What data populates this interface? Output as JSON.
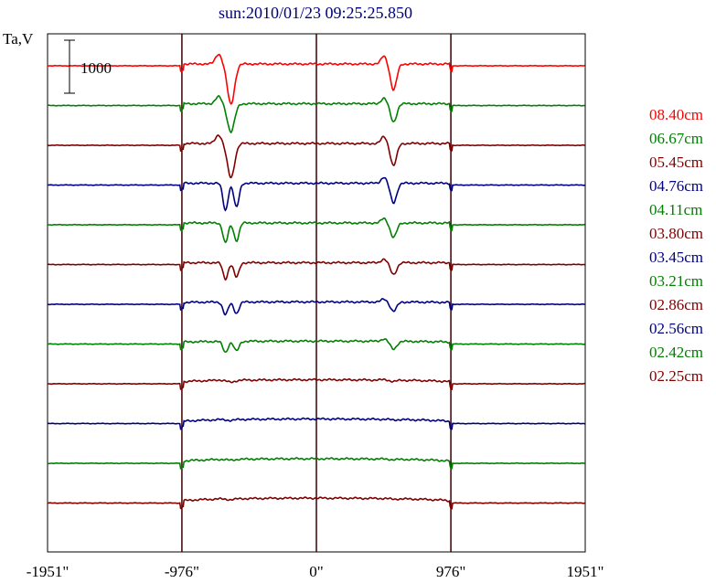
{
  "chart_data": {
    "type": "line",
    "title": "sun:2010/01/23 09:25:25.850",
    "ylabel": "Ta,V",
    "xlabel": "",
    "xlim": [
      -1951,
      1951
    ],
    "x_ticks": [
      {
        "value": -1951,
        "label": "-1951\""
      },
      {
        "value": -976,
        "label": "-976\""
      },
      {
        "value": 0,
        "label": "0\""
      },
      {
        "value": 976,
        "label": "976\""
      },
      {
        "value": 1951,
        "label": "1951\""
      }
    ],
    "vertical_lines": [
      -976,
      0,
      976
    ],
    "scale_bar": {
      "label": "1000",
      "value": 1000
    },
    "colors": {
      "red": "#ff0000",
      "green": "#008000",
      "maroon": "#800000",
      "navy": "#000080",
      "axis": "#000000",
      "divider": "#3a0000",
      "title": "#000080"
    },
    "series": [
      {
        "name": "08.40cm",
        "color": "#ff0000",
        "offset": 0,
        "dip_left": -620,
        "dip_right": 560,
        "depth": 1.0,
        "double": false,
        "limb": 0
      },
      {
        "name": "06.67cm",
        "color": "#008000",
        "offset": 1,
        "dip_left": -620,
        "dip_right": 560,
        "depth": 0.7,
        "double": false,
        "limb": 0
      },
      {
        "name": "05.45cm",
        "color": "#800000",
        "offset": 2,
        "dip_left": -620,
        "dip_right": 560,
        "depth": 0.85,
        "double": false,
        "limb": 0
      },
      {
        "name": "04.76cm",
        "color": "#000080",
        "offset": 3,
        "dip_left": -620,
        "dip_right": 560,
        "depth": 0.75,
        "double": true,
        "limb": 0
      },
      {
        "name": "04.11cm",
        "color": "#008000",
        "offset": 4,
        "dip_left": -620,
        "dip_right": 560,
        "depth": 0.55,
        "double": true,
        "limb": 0
      },
      {
        "name": "03.80cm",
        "color": "#800000",
        "offset": 5,
        "dip_left": -620,
        "dip_right": 560,
        "depth": 0.45,
        "double": true,
        "limb": 0
      },
      {
        "name": "03.45cm",
        "color": "#000080",
        "offset": 6,
        "dip_left": -620,
        "dip_right": 560,
        "depth": 0.35,
        "double": true,
        "limb": 0.05
      },
      {
        "name": "03.21cm",
        "color": "#008000",
        "offset": 7,
        "dip_left": -620,
        "dip_right": 560,
        "depth": 0.3,
        "double": true,
        "limb": 0.1
      },
      {
        "name": "02.86cm",
        "color": "#800000",
        "offset": 8,
        "dip_left": -620,
        "dip_right": 560,
        "depth": 0.05,
        "double": false,
        "limb": 0.2
      },
      {
        "name": "02.56cm",
        "color": "#000080",
        "offset": 9,
        "dip_left": -620,
        "dip_right": 560,
        "depth": 0.02,
        "double": false,
        "limb": 0.25
      },
      {
        "name": "02.42cm",
        "color": "#008000",
        "offset": 10,
        "dip_left": -620,
        "dip_right": 560,
        "depth": 0.02,
        "double": false,
        "limb": 0.25
      },
      {
        "name": "02.25cm",
        "color": "#800000",
        "offset": 11,
        "dip_left": -620,
        "dip_right": 560,
        "depth": 0.02,
        "double": false,
        "limb": 0.28
      }
    ],
    "grid": false
  }
}
